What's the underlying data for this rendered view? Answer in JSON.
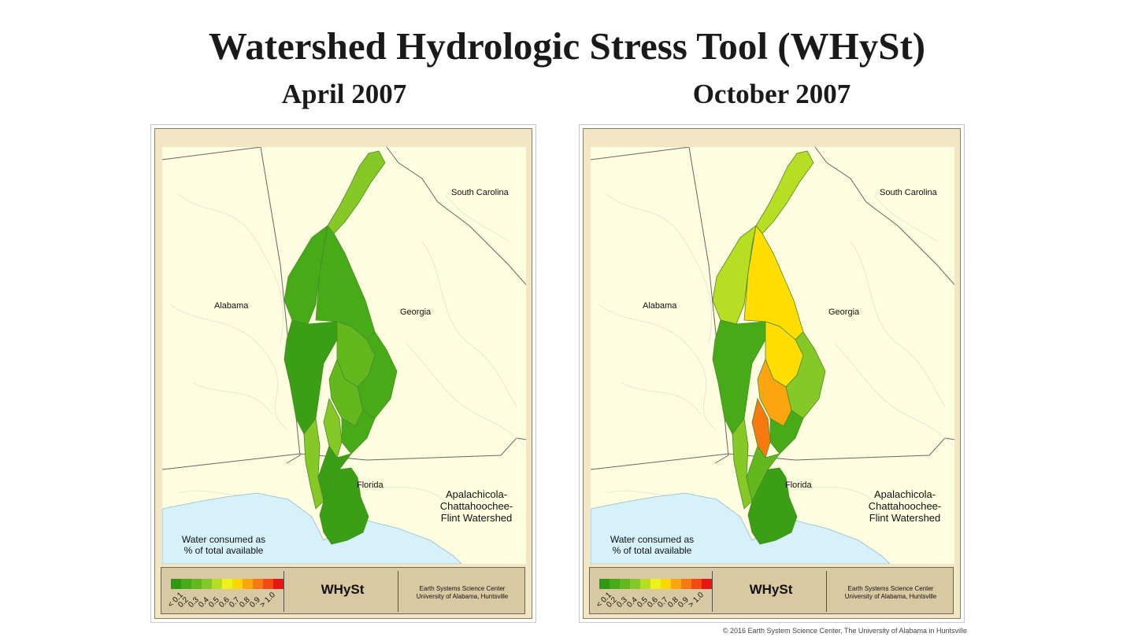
{
  "title": "Watershed Hydrologic Stress Tool (WHySt)",
  "copyright": "© 2016 Earth System Science Center, The University of Alabama in Huntsville",
  "legend": {
    "caption_line1": "Water consumed as",
    "caption_line2": "% of total available",
    "ticks": [
      "< 0.1",
      "0.2",
      "0.3",
      "0.4",
      "0.5",
      "0.6",
      "0.7",
      "0.8",
      "0.9",
      "> 1.0"
    ],
    "colors": [
      "#2e9a14",
      "#47ab18",
      "#63b81e",
      "#86c825",
      "#b7de22",
      "#eef020",
      "#ffd500",
      "#fca50f",
      "#f77a10",
      "#f24a12",
      "#e81515"
    ]
  },
  "labels": {
    "south_carolina": "South Carolina",
    "alabama": "Alabama",
    "georgia": "Georgia",
    "florida": "Florida",
    "watershed_line1": "Apalachicola-",
    "watershed_line2": "Chattahoochee-",
    "watershed_line3": "Flint Watershed",
    "brand": "WHySt",
    "org_line1": "Earth Systems Science Center",
    "org_line2": "University of Alabama, Huntsville"
  },
  "colors": {
    "land": "#fffde0",
    "water": "#d6f1f9",
    "frame": "#f2e6c4",
    "footer": "#d8c9a2"
  },
  "maps": [
    {
      "title": "April 2007",
      "subbasins": {
        "headwaters": "#86c825",
        "upper_west": "#47ab18",
        "upper_east": "#47ab18",
        "mid_west": "#3a9f14",
        "mid_center": "#63b81e",
        "mid_east": "#47ab18",
        "inner": "#63b81e",
        "flint_lower": "#86c825",
        "chatt_lower": "#86c825",
        "lower_west": "#47ab18",
        "southern": "#3a9f14",
        "apalachicola": "#3a9f14"
      }
    },
    {
      "title": "October 2007",
      "subbasins": {
        "headwaters": "#b7de22",
        "upper_west": "#b7de22",
        "upper_east": "#ffdd00",
        "mid_west": "#47ab18",
        "mid_center": "#ffdd00",
        "mid_east": "#86c825",
        "inner": "#fca50f",
        "flint_lower": "#f77a10",
        "chatt_lower": "#86c825",
        "lower_west": "#47ab18",
        "southern": "#63b81e",
        "apalachicola": "#3a9f14"
      }
    }
  ]
}
